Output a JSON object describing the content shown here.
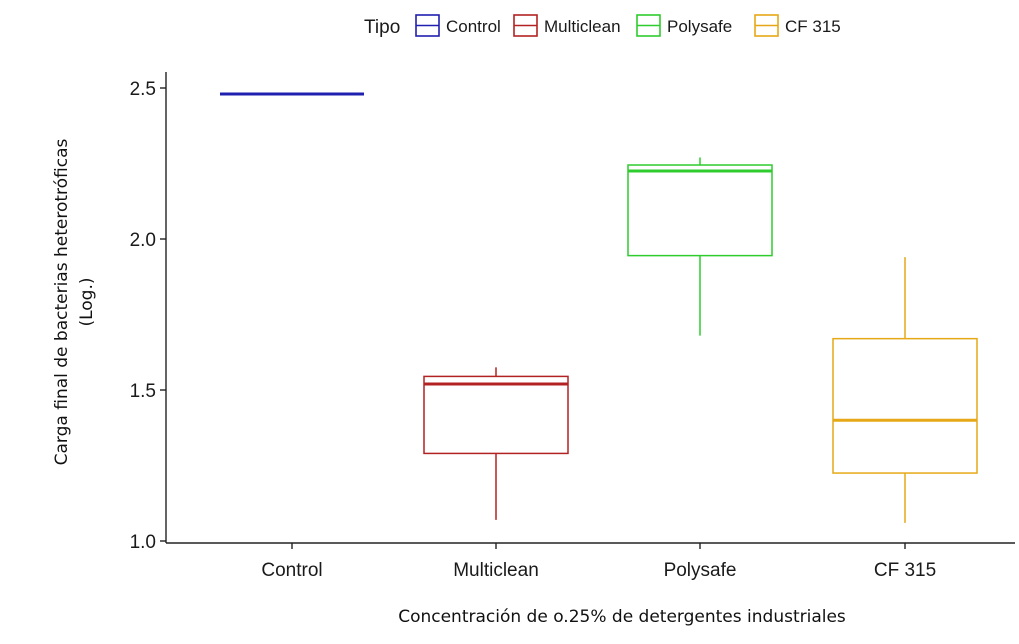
{
  "chart_data": {
    "type": "boxplot",
    "title": "",
    "xlabel": "Concentración de o.25% de detergentes industriales",
    "ylabel_lines": [
      "Carga final de bacterias heterotróficas",
      "(Log.)"
    ],
    "ylim": [
      1.0,
      2.5
    ],
    "yticks": [
      1.0,
      1.5,
      2.0,
      2.5
    ],
    "ytick_labels": [
      "1.0",
      "1.5",
      "2.0",
      "2.5"
    ],
    "grid": false,
    "legend": {
      "title": "Tipo",
      "position": "top",
      "entries": [
        "Control",
        "Multiclean",
        "Polysafe",
        "CF 315"
      ]
    },
    "categories": [
      "Control",
      "Multiclean",
      "Polysafe",
      "CF 315"
    ],
    "series": [
      {
        "name": "Control",
        "color": "#2020b0",
        "min": 2.48,
        "q1": 2.48,
        "median": 2.48,
        "q3": 2.48,
        "max": 2.48
      },
      {
        "name": "Multiclean",
        "color": "#b22222",
        "min": 1.07,
        "q1": 1.29,
        "median": 1.52,
        "q3": 1.545,
        "max": 1.575
      },
      {
        "name": "Polysafe",
        "color": "#2ecc2e",
        "min": 1.68,
        "q1": 1.945,
        "median": 2.225,
        "q3": 2.245,
        "max": 2.27
      },
      {
        "name": "CF 315",
        "color": "#e6a817",
        "min": 1.06,
        "q1": 1.225,
        "median": 1.4,
        "q3": 1.67,
        "max": 1.94
      }
    ]
  }
}
